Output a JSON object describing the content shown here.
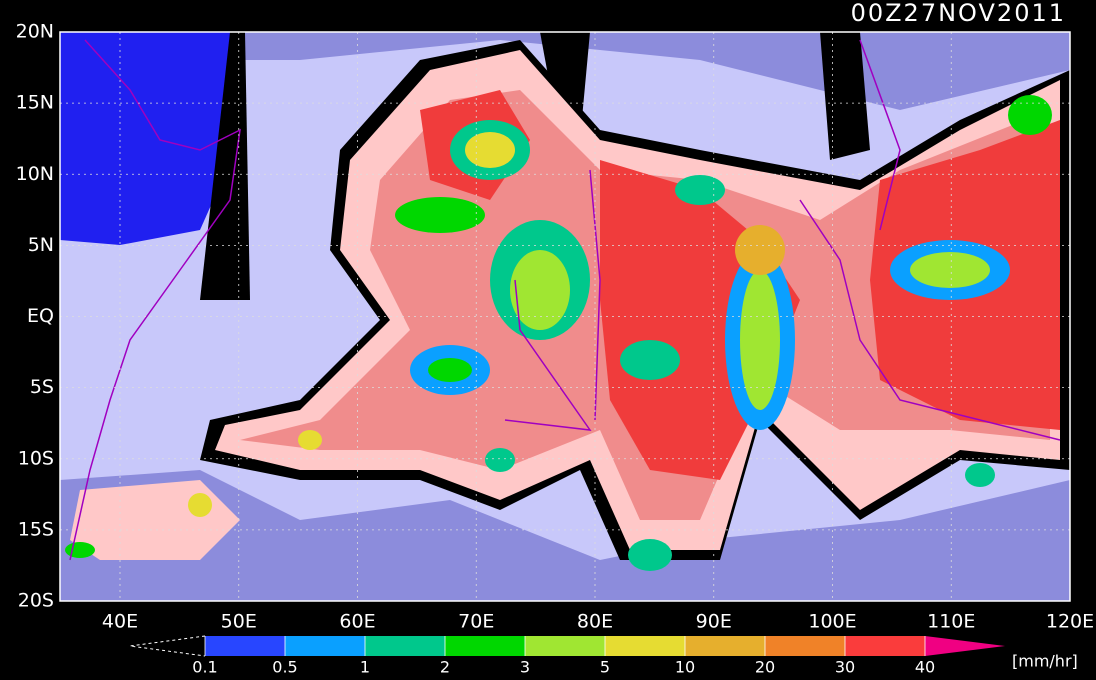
{
  "title": "00Z27NOV2011",
  "map": {
    "lat_labels": [
      "20N",
      "15N",
      "10N",
      "5N",
      "EQ",
      "5S",
      "10S",
      "15S",
      "20S"
    ],
    "lon_labels": [
      "40E",
      "50E",
      "60E",
      "70E",
      "80E",
      "90E",
      "100E",
      "110E",
      "120E"
    ]
  },
  "legend": {
    "levels": [
      "0.1",
      "0.5",
      "1",
      "2",
      "3",
      "5",
      "10",
      "20",
      "30",
      "40"
    ],
    "colors": [
      "#2846ff",
      "#0aa0ff",
      "#00c88c",
      "#00d700",
      "#a0e632",
      "#e6dc32",
      "#e6af2d",
      "#f08228",
      "#fa3c3c",
      "#f00082"
    ],
    "unit": "[mm/hr]"
  }
}
